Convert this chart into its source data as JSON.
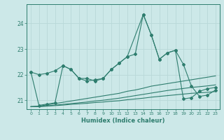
{
  "xlabel": "Humidex (Indice chaleur)",
  "background_color": "#cce8e8",
  "grid_color": "#b8d8d8",
  "line_color": "#2e7d6e",
  "xmin": -0.5,
  "xmax": 23.5,
  "ymin": 20.65,
  "ymax": 24.75,
  "yticks": [
    21,
    22,
    23,
    24
  ],
  "xticks": [
    0,
    1,
    2,
    3,
    4,
    5,
    6,
    7,
    8,
    9,
    10,
    11,
    12,
    13,
    14,
    15,
    16,
    17,
    18,
    19,
    20,
    21,
    22,
    23
  ],
  "line1_x": [
    0,
    1,
    2,
    3,
    4,
    5,
    6,
    7,
    8,
    9,
    10,
    11,
    12,
    13,
    14,
    15,
    16,
    17,
    18,
    19,
    20,
    21,
    22,
    23
  ],
  "line1_y": [
    22.1,
    22.0,
    22.05,
    22.15,
    22.35,
    22.2,
    21.85,
    21.85,
    21.75,
    21.85,
    22.2,
    22.45,
    22.7,
    22.8,
    24.35,
    23.55,
    22.6,
    22.85,
    22.95,
    22.4,
    21.55,
    21.15,
    21.2,
    21.4
  ],
  "line2_x": [
    0,
    1,
    2,
    3,
    4,
    5,
    6,
    7,
    8,
    9,
    10,
    11,
    12,
    14,
    15,
    16,
    17,
    18,
    19,
    20,
    21,
    22,
    23
  ],
  "line2_y": [
    22.1,
    20.8,
    20.85,
    20.9,
    22.35,
    22.2,
    21.85,
    21.75,
    21.8,
    21.85,
    22.2,
    22.45,
    22.7,
    24.35,
    23.55,
    22.6,
    22.85,
    22.95,
    21.05,
    21.1,
    21.35,
    21.45,
    21.5
  ],
  "line3_x": [
    0,
    1,
    2,
    3,
    4,
    5,
    6,
    7,
    8,
    9,
    10,
    11,
    12,
    13,
    14,
    15,
    16,
    17,
    18,
    19,
    20,
    21,
    22,
    23
  ],
  "line3_y": [
    20.75,
    20.77,
    20.82,
    20.87,
    20.92,
    20.97,
    21.02,
    21.07,
    21.12,
    21.17,
    21.22,
    21.27,
    21.35,
    21.4,
    21.47,
    21.55,
    21.6,
    21.65,
    21.7,
    21.75,
    21.8,
    21.85,
    21.9,
    21.95
  ],
  "line4_x": [
    0,
    1,
    2,
    3,
    4,
    5,
    6,
    7,
    8,
    9,
    10,
    11,
    12,
    13,
    14,
    15,
    16,
    17,
    18,
    19,
    20,
    21,
    22,
    23
  ],
  "line4_y": [
    20.75,
    20.76,
    20.78,
    20.81,
    20.84,
    20.87,
    20.9,
    20.93,
    20.97,
    21.0,
    21.04,
    21.08,
    21.13,
    21.18,
    21.23,
    21.28,
    21.33,
    21.38,
    21.42,
    21.46,
    21.5,
    21.53,
    21.56,
    21.6
  ],
  "line5_x": [
    0,
    1,
    2,
    3,
    4,
    5,
    6,
    7,
    8,
    9,
    10,
    11,
    12,
    13,
    14,
    15,
    16,
    17,
    18,
    19,
    20,
    21,
    22,
    23
  ],
  "line5_y": [
    20.75,
    20.75,
    20.77,
    20.79,
    20.81,
    20.84,
    20.86,
    20.88,
    20.91,
    20.93,
    20.96,
    20.98,
    21.02,
    21.05,
    21.08,
    21.12,
    21.15,
    21.18,
    21.21,
    21.24,
    21.27,
    21.29,
    21.31,
    21.34
  ]
}
